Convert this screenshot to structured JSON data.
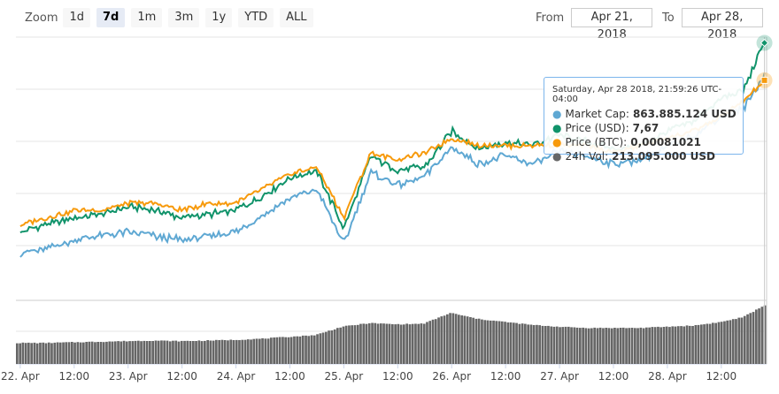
{
  "zoom": {
    "label": "Zoom",
    "buttons": [
      "1d",
      "7d",
      "1m",
      "3m",
      "1y",
      "YTD",
      "ALL"
    ],
    "active": "7d"
  },
  "range": {
    "from_label": "From",
    "from_value": "Apr 21, 2018",
    "to_label": "To",
    "to_value": "Apr 28, 2018"
  },
  "tooltip": {
    "header": "Saturday, Apr 28 2018, 21:59:26 UTC-04:00",
    "rows": [
      {
        "label": "Market Cap:",
        "value": "863.885.124 USD",
        "color": "#5fa8d3"
      },
      {
        "label": "Price (USD):",
        "value": "7,67",
        "color": "#10936a"
      },
      {
        "label": "Price (BTC):",
        "value": "0,00081021",
        "color": "#f79a0c"
      },
      {
        "label": "24h Vol:",
        "value": "213.095.000 USD",
        "color": "#676767"
      }
    ]
  },
  "colors": {
    "market_cap": "#5fa8d3",
    "price_usd": "#10936a",
    "price_btc": "#f79a0c",
    "volume": "#666666"
  },
  "chart_data": {
    "type": "line",
    "x_tick_labels": [
      "22. Apr",
      "12:00",
      "23. Apr",
      "12:00",
      "24. Apr",
      "12:00",
      "25. Apr",
      "12:00",
      "26. Apr",
      "12:00",
      "27. Apr",
      "12:00",
      "28. Apr",
      "12:00"
    ],
    "x_range_days": [
      21.96,
      28.92
    ],
    "x": [
      22.0,
      22.25,
      22.5,
      22.75,
      23.0,
      23.25,
      23.5,
      23.75,
      24.0,
      24.25,
      24.5,
      24.75,
      25.0,
      25.25,
      25.5,
      25.75,
      26.0,
      26.25,
      26.5,
      26.75,
      27.0,
      27.25,
      27.5,
      27.75,
      28.0,
      28.25,
      28.5,
      28.7,
      28.9
    ],
    "series": [
      {
        "name": "Price (USD)",
        "values": [
          5.05,
          5.15,
          5.25,
          5.3,
          5.4,
          5.35,
          5.25,
          5.3,
          5.35,
          5.55,
          5.8,
          5.9,
          5.1,
          6.1,
          5.9,
          5.95,
          6.45,
          6.2,
          6.3,
          6.25,
          6.4,
          6.3,
          6.2,
          6.25,
          6.45,
          6.6,
          6.9,
          7.0,
          7.67
        ]
      },
      {
        "name": "Market Cap",
        "values": [
          4.95,
          5.0,
          5.1,
          5.15,
          5.2,
          5.15,
          5.1,
          5.15,
          5.2,
          5.4,
          5.6,
          5.7,
          5.05,
          5.9,
          5.75,
          5.85,
          6.2,
          6.0,
          6.1,
          6.0,
          6.15,
          6.1,
          6.0,
          6.05,
          6.2,
          6.35,
          6.55,
          6.65,
          7.05
        ]
      },
      {
        "name": "Price (BTC)",
        "values": [
          0.00061,
          0.00062,
          0.00063,
          0.00063,
          0.00064,
          0.00064,
          0.00063,
          0.00064,
          0.00064,
          0.00066,
          0.00068,
          0.00069,
          0.00062,
          0.00071,
          0.0007,
          0.00071,
          0.00073,
          0.00072,
          0.00072,
          0.00072,
          0.00072,
          0.00072,
          0.00071,
          0.00072,
          0.00073,
          0.00074,
          0.00076,
          0.00078,
          0.00081021
        ]
      }
    ],
    "volume": [
      0.35,
      0.35,
      0.36,
      0.37,
      0.38,
      0.39,
      0.38,
      0.39,
      0.4,
      0.42,
      0.45,
      0.48,
      0.62,
      0.68,
      0.66,
      0.67,
      0.85,
      0.75,
      0.7,
      0.65,
      0.62,
      0.6,
      0.6,
      0.6,
      0.62,
      0.64,
      0.7,
      0.78,
      0.98
    ]
  }
}
